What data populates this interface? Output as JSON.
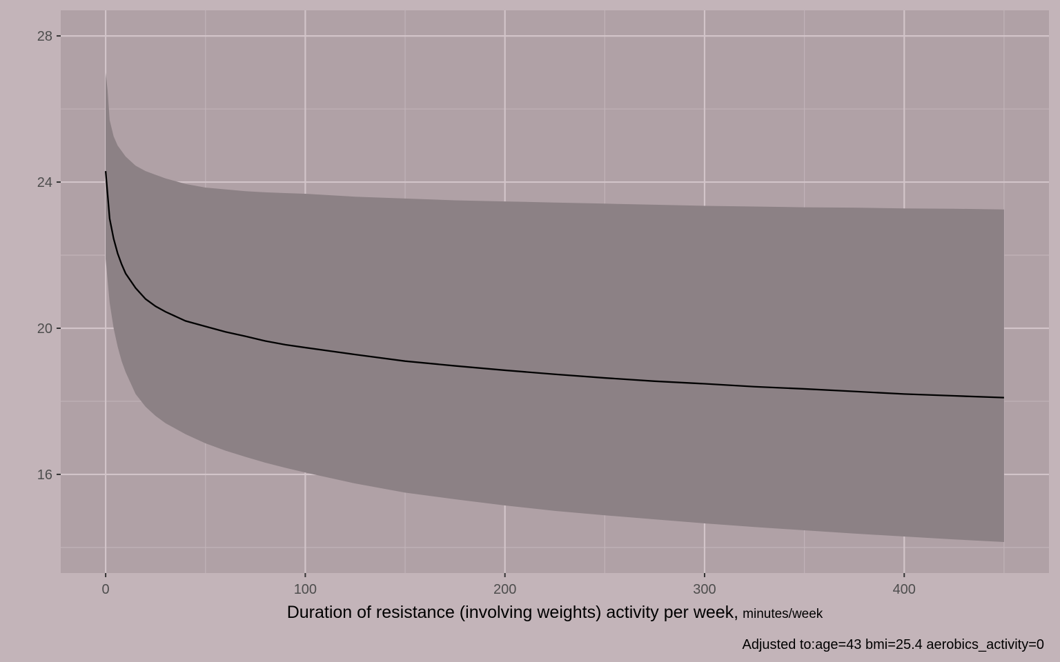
{
  "chart_data": {
    "type": "line",
    "xlabel": "Duration of resistance (involving weights) activity per week,",
    "xlabel_unit": "minutes/week",
    "caption": "Adjusted to:age=43 bmi=25.4 aerobics_activity=0",
    "xlim": [
      -22.5,
      472.5
    ],
    "ylim": [
      13.3,
      28.7
    ],
    "x_ticks": [
      0,
      100,
      200,
      300,
      400
    ],
    "x_tick_labels": [
      "0",
      "100",
      "200",
      "300",
      "400"
    ],
    "y_ticks": [
      16,
      20,
      24,
      28
    ],
    "y_tick_labels": [
      "16",
      "20",
      "24",
      "28"
    ],
    "x_minor_ticks": [
      50,
      150,
      250,
      350,
      450
    ],
    "y_minor_ticks": [
      14,
      18,
      22,
      26
    ],
    "grid": true,
    "legend": "none",
    "series": [
      {
        "kind": "line",
        "x": [
          0,
          2,
          4,
          6,
          8,
          10,
          15,
          20,
          25,
          30,
          40,
          50,
          60,
          70,
          80,
          90,
          100,
          125,
          150,
          175,
          200,
          225,
          250,
          275,
          300,
          325,
          350,
          375,
          400,
          425,
          450
        ],
        "y": [
          24.3,
          23.0,
          22.45,
          22.05,
          21.75,
          21.5,
          21.1,
          20.8,
          20.6,
          20.45,
          20.2,
          20.05,
          19.9,
          19.78,
          19.65,
          19.55,
          19.47,
          19.28,
          19.1,
          18.97,
          18.85,
          18.74,
          18.64,
          18.55,
          18.48,
          18.4,
          18.34,
          18.27,
          18.2,
          18.15,
          18.1
        ]
      },
      {
        "kind": "ribbon",
        "x": [
          0,
          1,
          2,
          4,
          6,
          8,
          10,
          15,
          20,
          25,
          30,
          40,
          50,
          60,
          70,
          80,
          90,
          100,
          125,
          150,
          175,
          200,
          225,
          250,
          275,
          300,
          325,
          350,
          375,
          400,
          425,
          450
        ],
        "upper": [
          27.0,
          26.5,
          25.7,
          25.25,
          25.0,
          24.85,
          24.7,
          24.45,
          24.3,
          24.2,
          24.1,
          23.95,
          23.85,
          23.8,
          23.75,
          23.72,
          23.7,
          23.68,
          23.6,
          23.55,
          23.5,
          23.47,
          23.44,
          23.41,
          23.38,
          23.35,
          23.33,
          23.31,
          23.3,
          23.28,
          23.27,
          23.25
        ],
        "lower": [
          21.9,
          21.3,
          20.7,
          20.0,
          19.5,
          19.1,
          18.8,
          18.2,
          17.85,
          17.6,
          17.4,
          17.1,
          16.85,
          16.65,
          16.48,
          16.32,
          16.18,
          16.05,
          15.75,
          15.5,
          15.32,
          15.15,
          15.0,
          14.88,
          14.77,
          14.66,
          14.56,
          14.47,
          14.38,
          14.3,
          14.22,
          14.15
        ]
      }
    ]
  }
}
